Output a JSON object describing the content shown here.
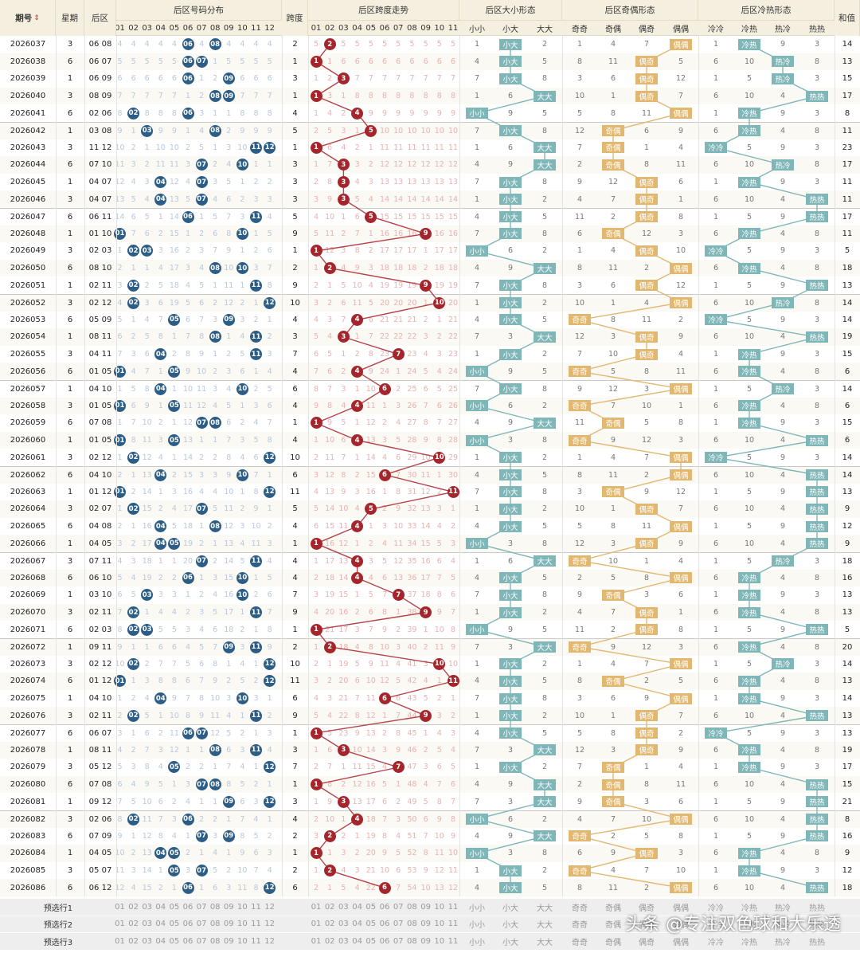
{
  "headers": {
    "issue": "期号",
    "sort_icon": "sort-arrows",
    "weekday": "星期",
    "back": "后区",
    "dist": "后区号码分布",
    "span": "跨度",
    "trend": "后区跨度走势",
    "size": "后区大小形态",
    "parity": "后区奇偶形态",
    "hotcold": "后区冷热形态",
    "sum": "和值"
  },
  "dist_numbers": [
    "01",
    "02",
    "03",
    "04",
    "05",
    "06",
    "07",
    "08",
    "09",
    "10",
    "11",
    "12"
  ],
  "trend_numbers": [
    "01",
    "02",
    "03",
    "04",
    "05",
    "06",
    "07",
    "08",
    "09",
    "10",
    "11"
  ],
  "size_labels": [
    "小小",
    "小大",
    "大大"
  ],
  "parity_labels": [
    "奇奇",
    "奇偶",
    "偶奇",
    "偶偶"
  ],
  "hotcold_labels": [
    "冷冷",
    "冷热",
    "热冷",
    "热热"
  ],
  "rows": [
    {
      "issue": "2026037",
      "week": "3",
      "back": "06 08",
      "span": "2",
      "sum": "14"
    },
    {
      "issue": "2026038",
      "week": "6",
      "back": "06 07",
      "span": "1",
      "sum": "13"
    },
    {
      "issue": "2026039",
      "week": "1",
      "back": "06 09",
      "span": "3",
      "sum": "15"
    },
    {
      "issue": "2026040",
      "week": "3",
      "back": "08 09",
      "span": "1",
      "sum": "17"
    },
    {
      "issue": "2026041",
      "week": "6",
      "back": "02 06",
      "span": "4",
      "sum": "8"
    },
    {
      "issue": "2026042",
      "week": "1",
      "back": "03 08",
      "span": "5",
      "sum": "11"
    },
    {
      "issue": "2026043",
      "week": "3",
      "back": "11 12",
      "span": "1",
      "sum": "23"
    },
    {
      "issue": "2026044",
      "week": "6",
      "back": "07 10",
      "span": "3",
      "sum": "17"
    },
    {
      "issue": "2026045",
      "week": "1",
      "back": "04 07",
      "span": "3",
      "sum": "11"
    },
    {
      "issue": "2026046",
      "week": "3",
      "back": "04 07",
      "span": "3",
      "sum": "11"
    },
    {
      "issue": "2026047",
      "week": "6",
      "back": "06 11",
      "span": "5",
      "sum": "17"
    },
    {
      "issue": "2026048",
      "week": "1",
      "back": "01 10",
      "span": "9",
      "sum": "11"
    },
    {
      "issue": "2026049",
      "week": "3",
      "back": "02 03",
      "span": "1",
      "sum": "5"
    },
    {
      "issue": "2026050",
      "week": "6",
      "back": "08 10",
      "span": "2",
      "sum": "18"
    },
    {
      "issue": "2026051",
      "week": "1",
      "back": "02 11",
      "span": "9",
      "sum": "13"
    },
    {
      "issue": "2026052",
      "week": "3",
      "back": "02 12",
      "span": "10",
      "sum": "14"
    },
    {
      "issue": "2026053",
      "week": "6",
      "back": "05 09",
      "span": "4",
      "sum": "14"
    },
    {
      "issue": "2026054",
      "week": "1",
      "back": "08 11",
      "span": "3",
      "sum": "19"
    },
    {
      "issue": "2026055",
      "week": "3",
      "back": "04 11",
      "span": "7",
      "sum": "15"
    },
    {
      "issue": "2026056",
      "week": "6",
      "back": "01 05",
      "span": "4",
      "sum": "6"
    },
    {
      "issue": "2026057",
      "week": "1",
      "back": "04 10",
      "span": "6",
      "sum": "14"
    },
    {
      "issue": "2026058",
      "week": "3",
      "back": "01 05",
      "span": "4",
      "sum": "6"
    },
    {
      "issue": "2026059",
      "week": "6",
      "back": "07 08",
      "span": "1",
      "sum": "15"
    },
    {
      "issue": "2026060",
      "week": "1",
      "back": "01 05",
      "span": "4",
      "sum": "6"
    },
    {
      "issue": "2026061",
      "week": "3",
      "back": "02 12",
      "span": "10",
      "sum": "14"
    },
    {
      "issue": "2026062",
      "week": "6",
      "back": "04 10",
      "span": "6",
      "sum": "14"
    },
    {
      "issue": "2026063",
      "week": "1",
      "back": "01 12",
      "span": "11",
      "sum": "13"
    },
    {
      "issue": "2026064",
      "week": "3",
      "back": "02 07",
      "span": "5",
      "sum": "9"
    },
    {
      "issue": "2026065",
      "week": "6",
      "back": "04 08",
      "span": "4",
      "sum": "12"
    },
    {
      "issue": "2026066",
      "week": "1",
      "back": "04 05",
      "span": "1",
      "sum": "9"
    },
    {
      "issue": "2026067",
      "week": "3",
      "back": "07 11",
      "span": "4",
      "sum": "18"
    },
    {
      "issue": "2026068",
      "week": "6",
      "back": "06 10",
      "span": "4",
      "sum": "16"
    },
    {
      "issue": "2026069",
      "week": "1",
      "back": "03 10",
      "span": "7",
      "sum": "13"
    },
    {
      "issue": "2026070",
      "week": "3",
      "back": "02 11",
      "span": "9",
      "sum": "13"
    },
    {
      "issue": "2026071",
      "week": "6",
      "back": "02 03",
      "span": "1",
      "sum": "5"
    },
    {
      "issue": "2026072",
      "week": "1",
      "back": "09 11",
      "span": "2",
      "sum": "20"
    },
    {
      "issue": "2026073",
      "week": "3",
      "back": "02 12",
      "span": "10",
      "sum": "14"
    },
    {
      "issue": "2026074",
      "week": "6",
      "back": "01 12",
      "span": "11",
      "sum": "13"
    },
    {
      "issue": "2026075",
      "week": "1",
      "back": "04 10",
      "span": "6",
      "sum": "14"
    },
    {
      "issue": "2026076",
      "week": "3",
      "back": "02 11",
      "span": "9",
      "sum": "13"
    },
    {
      "issue": "2026077",
      "week": "6",
      "back": "06 07",
      "span": "1",
      "sum": "13"
    },
    {
      "issue": "2026078",
      "week": "1",
      "back": "08 11",
      "span": "3",
      "sum": "19"
    },
    {
      "issue": "2026079",
      "week": "3",
      "back": "05 12",
      "span": "7",
      "sum": "17"
    },
    {
      "issue": "2026080",
      "week": "6",
      "back": "07 08",
      "span": "1",
      "sum": "15"
    },
    {
      "issue": "2026081",
      "week": "1",
      "back": "09 12",
      "span": "3",
      "sum": "21"
    },
    {
      "issue": "2026082",
      "week": "3",
      "back": "02 06",
      "span": "4",
      "sum": "8"
    },
    {
      "issue": "2026083",
      "week": "6",
      "back": "07 09",
      "span": "2",
      "sum": "16"
    },
    {
      "issue": "2026084",
      "week": "1",
      "back": "04 05",
      "span": "1",
      "sum": "9"
    },
    {
      "issue": "2026085",
      "week": "3",
      "back": "05 07",
      "span": "2",
      "sum": "12"
    },
    {
      "issue": "2026086",
      "week": "6",
      "back": "06 12",
      "span": "6",
      "sum": "18"
    }
  ],
  "hotcold": [
    "冷热",
    "热冷",
    "热冷",
    "热热",
    "冷热",
    "冷热",
    "冷冷",
    "热冷",
    "冷热",
    "热热",
    "热热",
    "冷热",
    "冷冷",
    "冷热",
    "热热",
    "热冷",
    "冷冷",
    "热热",
    "冷热",
    "冷热",
    "热冷",
    "冷热",
    "冷热",
    "热热",
    "冷冷",
    "热热",
    "热热",
    "热热",
    "热热",
    "热热",
    "热冷",
    "冷热",
    "冷热",
    "冷热",
    "热热",
    "冷热",
    "热冷",
    "冷热",
    "冷热",
    "热热",
    "冷冷",
    "冷热",
    "冷热",
    "热热",
    "热热",
    "热热",
    "热热",
    "冷热",
    "冷热",
    "热热"
  ],
  "presel_rows": [
    "预选行1",
    "预选行2",
    "预选行3"
  ],
  "watermark": "头条 @专注双色球和大乐透"
}
